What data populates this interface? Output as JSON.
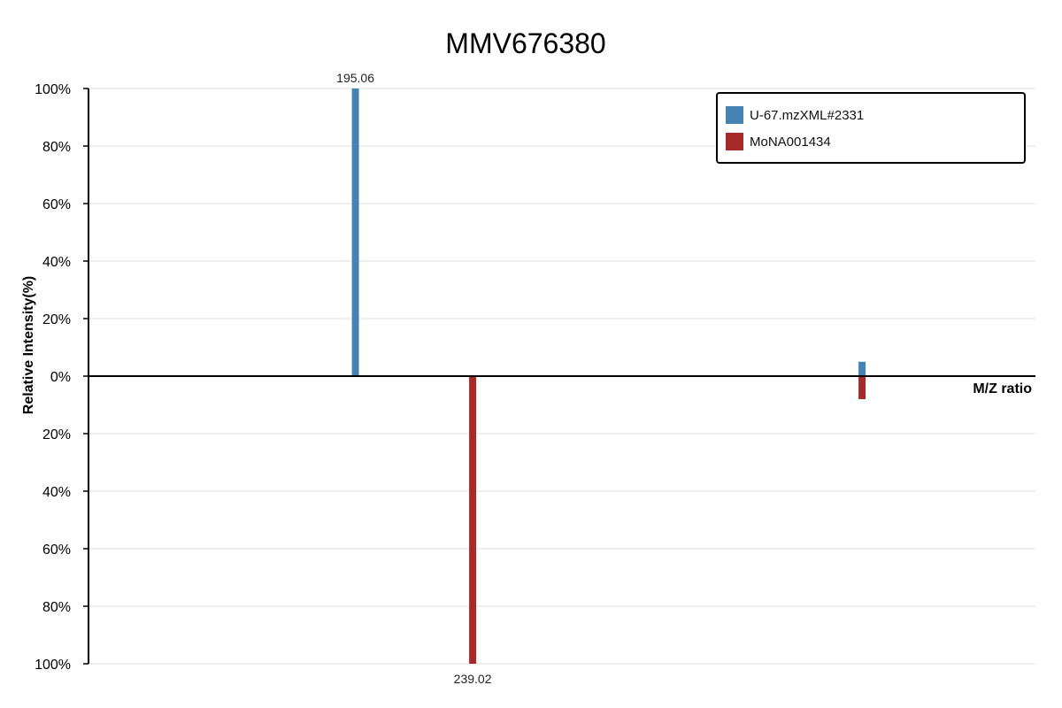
{
  "chart_data": {
    "type": "bar",
    "title": "MMV676380",
    "xlabel": "M/Z ratio",
    "ylabel": "Relative Intensity(%)",
    "ylim": [
      -100,
      100
    ],
    "y_tick_labels": [
      "100%",
      "80%",
      "60%",
      "40%",
      "20%",
      "0%",
      "20%",
      "40%",
      "60%",
      "80%",
      "100%"
    ],
    "grid": true,
    "legend_position": "top-right",
    "series": [
      {
        "name": "U-67.mzXML#2331",
        "color": "#4682b4",
        "direction": "up",
        "peaks": [
          {
            "mz": 195.06,
            "intensity": 100,
            "label": "195.06"
          },
          {
            "mz": 385.0,
            "intensity": 5
          }
        ]
      },
      {
        "name": "MoNA001434",
        "color": "#a52a2a",
        "direction": "down",
        "peaks": [
          {
            "mz": 239.02,
            "intensity": 100,
            "label": "239.02"
          },
          {
            "mz": 385.0,
            "intensity": 8
          }
        ]
      }
    ]
  }
}
